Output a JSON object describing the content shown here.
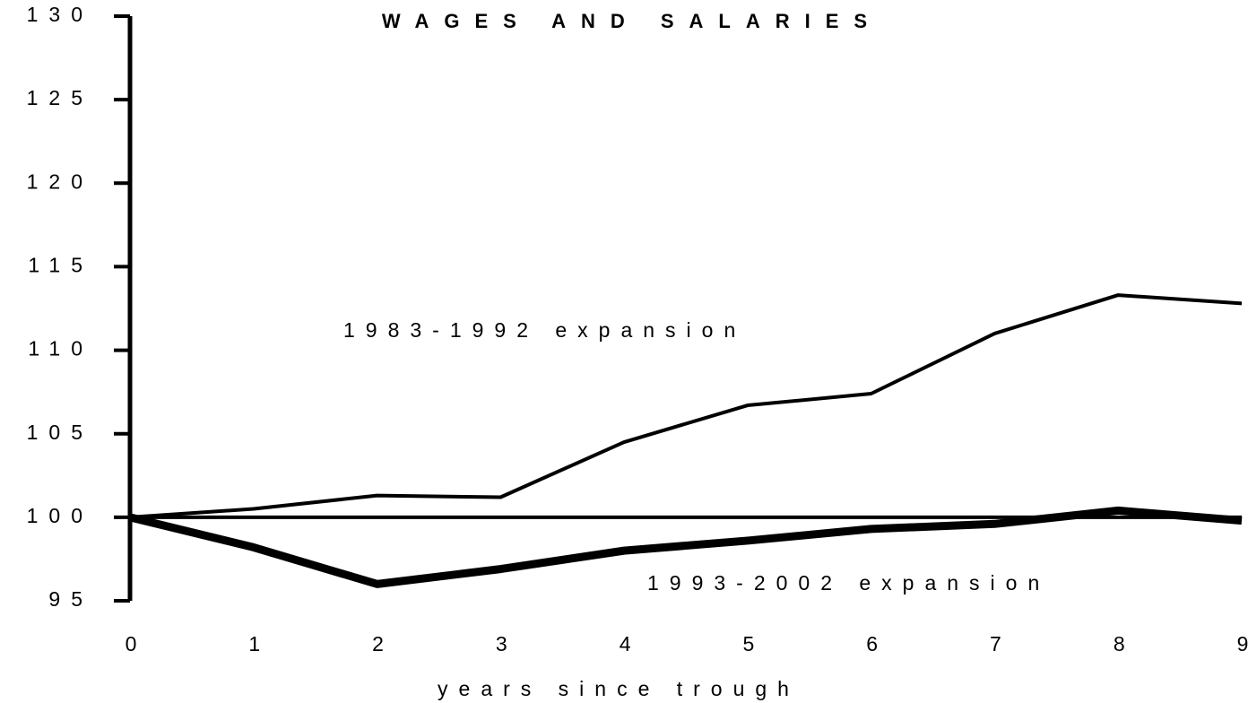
{
  "chart_data": {
    "type": "line",
    "title": "WAGES AND SALARIES",
    "x_label": "years since trough",
    "x": [
      0,
      1,
      2,
      3,
      4,
      5,
      6,
      7,
      8,
      9
    ],
    "series": [
      {
        "name": "1983-1992 expansion",
        "color": "#000000",
        "values": [
          100,
          100.5,
          101.3,
          101.2,
          104.5,
          106.7,
          107.4,
          111.0,
          113.3,
          112.8
        ]
      },
      {
        "name": "1993-2002 expansion",
        "color": "#000000",
        "values": [
          100,
          98.2,
          96.0,
          96.9,
          98.0,
          98.6,
          99.3,
          99.6,
          100.4,
          99.8
        ]
      }
    ],
    "reference_line": 100,
    "xlim": [
      0,
      9
    ],
    "xticks": [
      0,
      1,
      2,
      3,
      4,
      5,
      6,
      7,
      8,
      9
    ],
    "ylim": [
      95,
      130
    ],
    "yticks": [
      95,
      100,
      105,
      110,
      115,
      120,
      125,
      130
    ]
  }
}
